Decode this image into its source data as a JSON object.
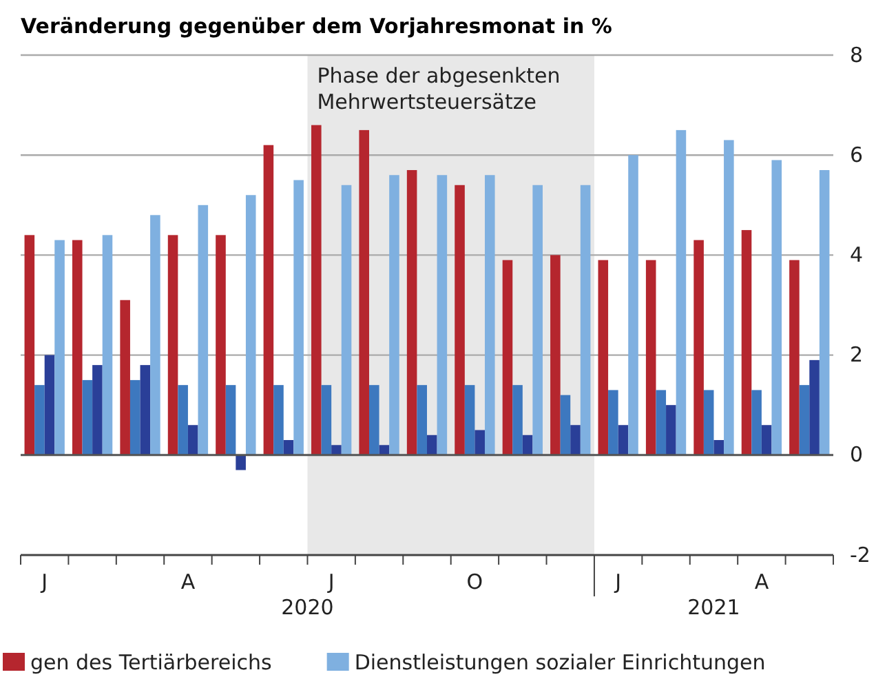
{
  "chart_data": {
    "type": "bar",
    "title": "Veränderung gegenüber dem Vorjahresmonat in %",
    "categories": [
      "J",
      null,
      null,
      "A",
      null,
      null,
      "J",
      null,
      null,
      "O",
      null,
      null,
      "J",
      null,
      null,
      "A",
      null
    ],
    "series": [
      {
        "name": "gen des Tertiärbereichs",
        "color": "#b5262e",
        "values": [
          4.4,
          4.3,
          3.1,
          4.4,
          4.4,
          6.2,
          6.6,
          6.5,
          5.7,
          5.4,
          3.9,
          4.0,
          3.9,
          3.9,
          4.3,
          4.5,
          3.9
        ]
      },
      {
        "color": "#3d78bf",
        "values": [
          1.4,
          1.5,
          1.5,
          1.4,
          1.4,
          1.4,
          1.4,
          1.4,
          1.4,
          1.4,
          1.4,
          1.2,
          1.3,
          1.3,
          1.3,
          1.3,
          1.4
        ]
      },
      {
        "color": "#2a3f98",
        "values": [
          2.0,
          1.8,
          1.8,
          0.6,
          -0.3,
          0.3,
          0.2,
          0.2,
          0.4,
          0.5,
          0.4,
          0.6,
          0.6,
          1.0,
          0.3,
          0.6,
          1.9
        ]
      },
      {
        "name": "Dienstleistungen sozialer Einrichtungen",
        "color": "#7fb0e0",
        "values": [
          4.3,
          4.4,
          4.8,
          5.0,
          5.2,
          5.5,
          5.4,
          5.6,
          5.6,
          5.6,
          5.4,
          5.4,
          6.0,
          6.5,
          6.3,
          5.9,
          5.7
        ]
      }
    ],
    "ylim": [
      -2,
      8
    ],
    "yticks": [
      -2,
      0,
      2,
      4,
      6,
      8
    ],
    "grid": "y",
    "legend": "bottom",
    "annotations": [
      "Phase der abgesenkten\nMehrwertsteuersätze",
      "2020",
      "2021"
    ]
  }
}
